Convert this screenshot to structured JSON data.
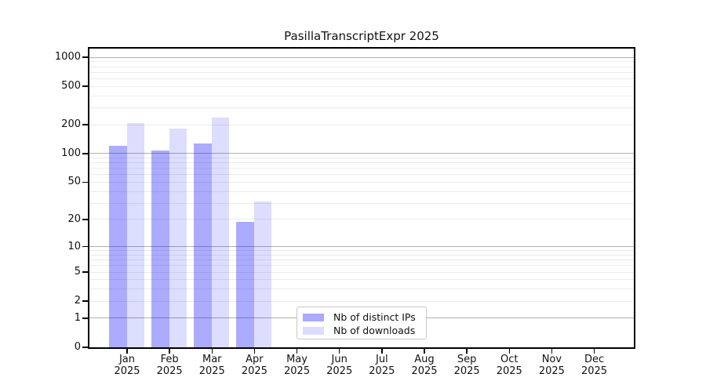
{
  "title": "PasillaTranscriptExpr 2025",
  "legend": {
    "items": [
      {
        "label": "Nb of distinct IPs",
        "color": "#aaaaff"
      },
      {
        "label": "Nb of downloads",
        "color": "#dcdcfc"
      }
    ]
  },
  "chart_data": {
    "type": "bar",
    "title": "PasillaTranscriptExpr 2025",
    "categories": [
      "Jan",
      "Feb",
      "Mar",
      "Apr",
      "May",
      "Jun",
      "Jul",
      "Aug",
      "Sep",
      "Oct",
      "Nov",
      "Dec"
    ],
    "year": "2025",
    "series": [
      {
        "name": "Nb of distinct IPs",
        "color": "#aaaaff",
        "bar_rgba": "rgba(0,0,255,0.33)",
        "values": [
          120,
          108,
          128,
          19,
          0,
          0,
          0,
          0,
          0,
          0,
          0,
          0
        ]
      },
      {
        "name": "Nb of downloads",
        "color": "#dcdcfc",
        "bar_rgba": "rgba(0,0,255,0.135)",
        "values": [
          207,
          183,
          235,
          31,
          0,
          0,
          0,
          0,
          0,
          0,
          0,
          0
        ]
      }
    ],
    "yscale": "log10(value+1)",
    "ylim": [
      0,
      1230
    ],
    "yticks": [
      0,
      1,
      2,
      5,
      10,
      20,
      50,
      100,
      200,
      500,
      1000
    ],
    "major_gridlines": [
      1,
      10,
      100,
      1000
    ],
    "minor_gridlines": [
      2,
      3,
      4,
      5,
      6,
      7,
      8,
      9,
      20,
      30,
      40,
      50,
      60,
      70,
      80,
      90,
      200,
      300,
      400,
      500,
      600,
      700,
      800,
      900
    ],
    "grid": "horizontal",
    "legend_position": "inside-bottom-center",
    "xlabel": "",
    "ylabel": ""
  },
  "colors": {
    "axis": "#000000",
    "major_grid": "#b0b0b0",
    "minor_grid": "#ebebeb",
    "background": "#ffffff",
    "text": "#111111",
    "legend_border": "#c8c8c8"
  }
}
